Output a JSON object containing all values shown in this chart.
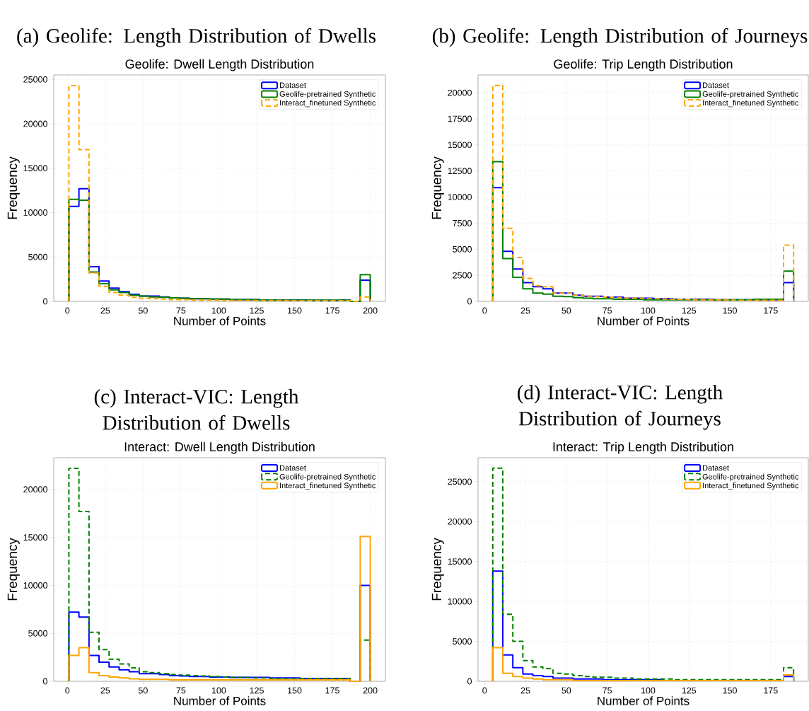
{
  "chart_data": [
    {
      "type": "histogram",
      "title": "(a) Geolife: Length Distribution of Dwells",
      "subtitle": "Geolife: Dwell Length Distribution",
      "xlabel": "Number of Points",
      "ylabel": "Frequency",
      "bins": [
        1,
        7.63,
        14.27,
        20.9,
        27.53,
        34.17,
        40.8,
        47.43,
        54.07,
        60.7,
        67.33,
        73.97,
        80.6,
        87.23,
        93.87,
        100.5,
        107.13,
        113.77,
        120.4,
        127.03,
        133.67,
        140.3,
        146.93,
        153.57,
        160.2,
        166.83,
        173.47,
        180.1,
        186.73,
        193.37,
        200
      ],
      "series": [
        {
          "name": "Dataset",
          "color": "#0000ff",
          "line_style": "solid",
          "values": [
            10700,
            12700,
            3900,
            2300,
            1500,
            1100,
            800,
            600,
            600,
            500,
            400,
            350,
            300,
            300,
            250,
            250,
            200,
            200,
            200,
            150,
            150,
            150,
            150,
            150,
            100,
            100,
            100,
            150,
            0,
            2400
          ]
        },
        {
          "name": "Geolife-pretrained Synthetic",
          "color": "#008000",
          "line_style": "solid",
          "values": [
            11500,
            11400,
            3300,
            2000,
            1300,
            1000,
            700,
            600,
            500,
            450,
            400,
            350,
            300,
            300,
            250,
            250,
            200,
            200,
            200,
            150,
            150,
            150,
            150,
            150,
            150,
            150,
            150,
            150,
            0,
            3000
          ]
        },
        {
          "name": "Interact_finetuned Synthetic",
          "color": "#ffa500",
          "line_style": "dashed",
          "values": [
            24300,
            17100,
            3200,
            1700,
            1000,
            700,
            450,
            350,
            300,
            250,
            200,
            200,
            150,
            150,
            150,
            100,
            100,
            100,
            100,
            100,
            100,
            100,
            80,
            80,
            80,
            80,
            80,
            80,
            0,
            500
          ]
        }
      ],
      "xlim": [
        -9,
        210
      ],
      "ylim": [
        0,
        25500
      ],
      "xticks": [
        0,
        25,
        50,
        75,
        100,
        125,
        150,
        175,
        200
      ],
      "yticks": [
        0,
        5000,
        10000,
        15000,
        20000,
        25000
      ],
      "grid": true,
      "legend": "top right"
    },
    {
      "type": "histogram",
      "title": "(b) Geolife: Length Distribution of Journeys",
      "subtitle": "Geolife: Trip Length Distribution",
      "xlabel": "Number of Points",
      "ylabel": "Frequency",
      "bins": [
        5,
        11.13,
        17.27,
        23.4,
        29.53,
        35.67,
        41.8,
        47.93,
        54.07,
        60.2,
        66.33,
        72.47,
        78.6,
        84.73,
        90.87,
        97,
        103.13,
        109.27,
        115.4,
        121.53,
        127.67,
        133.8,
        139.93,
        146.07,
        152.2,
        158.33,
        164.47,
        170.6,
        176.73,
        182.87,
        189
      ],
      "series": [
        {
          "name": "Dataset",
          "color": "#0000ff",
          "line_style": "solid",
          "values": [
            10900,
            4800,
            3100,
            1800,
            1400,
            1200,
            800,
            800,
            600,
            500,
            500,
            400,
            400,
            300,
            300,
            300,
            250,
            250,
            200,
            200,
            200,
            200,
            150,
            150,
            150,
            150,
            150,
            150,
            150,
            1800
          ]
        },
        {
          "name": "Geolife-pretrained Synthetic",
          "color": "#008000",
          "line_style": "solid",
          "values": [
            13400,
            4100,
            2300,
            1200,
            800,
            700,
            500,
            450,
            350,
            300,
            250,
            250,
            200,
            200,
            200,
            150,
            150,
            150,
            150,
            150,
            150,
            150,
            150,
            150,
            150,
            150,
            200,
            200,
            200,
            2900
          ]
        },
        {
          "name": "Interact_finetuned Synthetic",
          "color": "#ffa500",
          "line_style": "dashed",
          "values": [
            20700,
            7000,
            4200,
            2200,
            1500,
            1400,
            800,
            800,
            600,
            500,
            450,
            400,
            350,
            300,
            300,
            250,
            250,
            200,
            200,
            200,
            150,
            150,
            150,
            150,
            100,
            100,
            100,
            100,
            100,
            5400
          ]
        }
      ],
      "xlim": [
        -4,
        198
      ],
      "ylim": [
        0,
        21700
      ],
      "xticks": [
        0,
        25,
        50,
        75,
        100,
        125,
        150,
        175
      ],
      "yticks": [
        0,
        2500,
        5000,
        7500,
        10000,
        12500,
        15000,
        17500,
        20000
      ],
      "grid": true,
      "legend": "top right"
    },
    {
      "type": "histogram",
      "title": "(c) Interact-VIC: Length Distribution of Dwells",
      "subtitle": "Interact: Dwell Length Distribution",
      "xlabel": "Number of Points",
      "ylabel": "Frequency",
      "bins": [
        1,
        7.63,
        14.27,
        20.9,
        27.53,
        34.17,
        40.8,
        47.43,
        54.07,
        60.7,
        67.33,
        73.97,
        80.6,
        87.23,
        93.87,
        100.5,
        107.13,
        113.77,
        120.4,
        127.03,
        133.67,
        140.3,
        146.93,
        153.57,
        160.2,
        166.83,
        173.47,
        180.1,
        186.73,
        193.37,
        200
      ],
      "series": [
        {
          "name": "Dataset",
          "color": "#0000ff",
          "line_style": "solid",
          "values": [
            7200,
            6700,
            2700,
            2000,
            1500,
            1200,
            1000,
            800,
            800,
            700,
            600,
            550,
            500,
            500,
            450,
            450,
            400,
            400,
            400,
            400,
            350,
            350,
            350,
            300,
            300,
            300,
            300,
            300,
            0,
            10000
          ]
        },
        {
          "name": "Geolife-pretrained Synthetic",
          "color": "#008000",
          "line_style": "dashed",
          "values": [
            22200,
            17700,
            5100,
            3300,
            2300,
            1800,
            1400,
            1000,
            900,
            800,
            700,
            650,
            600,
            550,
            500,
            450,
            400,
            400,
            350,
            350,
            300,
            300,
            300,
            300,
            300,
            300,
            300,
            300,
            0,
            4300
          ]
        },
        {
          "name": "Interact_finetuned Synthetic",
          "color": "#ffa500",
          "line_style": "solid",
          "values": [
            2700,
            3500,
            900,
            600,
            450,
            350,
            250,
            200,
            200,
            200,
            150,
            150,
            150,
            150,
            150,
            150,
            150,
            150,
            150,
            150,
            150,
            150,
            150,
            150,
            150,
            150,
            150,
            150,
            0,
            15100
          ]
        }
      ],
      "xlim": [
        -9,
        210
      ],
      "ylim": [
        0,
        23300
      ],
      "xticks": [
        0,
        25,
        50,
        75,
        100,
        125,
        150,
        175,
        200
      ],
      "yticks": [
        0,
        5000,
        10000,
        15000,
        20000
      ],
      "grid": true,
      "legend": "top right"
    },
    {
      "type": "histogram",
      "title": "(d) Interact-VIC: Length Distribution of Journeys",
      "subtitle": "Interact: Trip Length Distribution",
      "xlabel": "Number of Points",
      "ylabel": "Frequency",
      "bins": [
        5,
        11.13,
        17.27,
        23.4,
        29.53,
        35.67,
        41.8,
        47.93,
        54.07,
        60.2,
        66.33,
        72.47,
        78.6,
        84.73,
        90.87,
        97,
        103.13,
        109.27,
        115.4,
        121.53,
        127.67,
        133.8,
        139.93,
        146.07,
        152.2,
        158.33,
        164.47,
        170.6,
        176.73,
        182.87,
        189
      ],
      "series": [
        {
          "name": "Dataset",
          "color": "#0000ff",
          "line_style": "solid",
          "values": [
            13800,
            3300,
            1700,
            900,
            700,
            600,
            400,
            400,
            300,
            300,
            300,
            200,
            200,
            200,
            200,
            200,
            200,
            100,
            100,
            100,
            100,
            100,
            100,
            100,
            100,
            100,
            100,
            100,
            100,
            600
          ]
        },
        {
          "name": "Geolife-pretrained Synthetic",
          "color": "#008000",
          "line_style": "dashed",
          "values": [
            26700,
            8400,
            5000,
            2600,
            1800,
            1600,
            1000,
            900,
            700,
            600,
            500,
            500,
            400,
            400,
            300,
            300,
            300,
            300,
            200,
            200,
            200,
            200,
            200,
            200,
            200,
            200,
            200,
            200,
            200,
            1700
          ]
        },
        {
          "name": "Interact_finetuned Synthetic",
          "color": "#ffa500",
          "line_style": "solid",
          "values": [
            4200,
            1000,
            600,
            400,
            300,
            200,
            200,
            200,
            100,
            100,
            100,
            100,
            100,
            100,
            100,
            100,
            100,
            100,
            100,
            100,
            100,
            100,
            100,
            100,
            100,
            100,
            100,
            100,
            100,
            800
          ]
        }
      ],
      "xlim": [
        -4,
        198
      ],
      "ylim": [
        0,
        28000
      ],
      "xticks": [
        0,
        25,
        50,
        75,
        100,
        125,
        150,
        175
      ],
      "yticks": [
        0,
        5000,
        10000,
        15000,
        20000,
        25000
      ],
      "grid": true,
      "legend": "top right"
    }
  ]
}
